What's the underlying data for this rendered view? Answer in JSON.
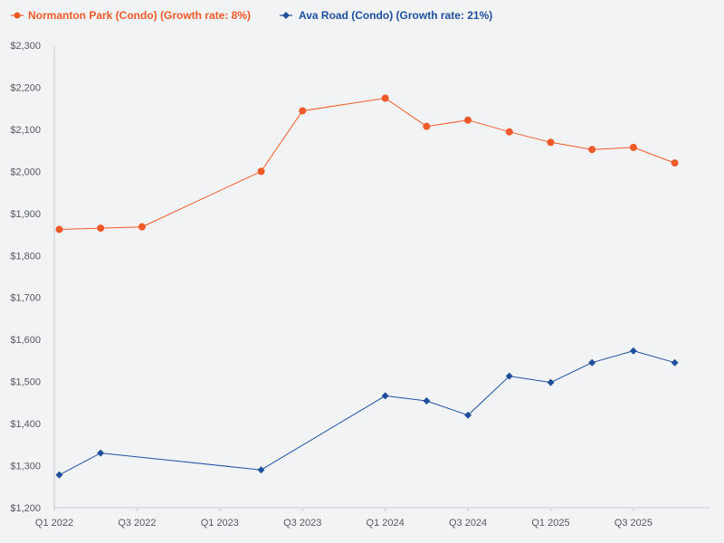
{
  "chart_data": {
    "type": "line",
    "title": "",
    "xlabel": "",
    "ylabel": "",
    "ylim": [
      1200,
      2300
    ],
    "y_ticks": [
      1200,
      1300,
      1400,
      1500,
      1600,
      1700,
      1800,
      1900,
      2000,
      2100,
      2200,
      2300
    ],
    "y_tick_labels": [
      "$1,200",
      "$1,300",
      "$1,400",
      "$1,500",
      "$1,600",
      "$1,700",
      "$1,800",
      "$1,900",
      "$2,000",
      "$2,100",
      "$2,200",
      "$2,300"
    ],
    "x_range": [
      2022.0,
      2025.96
    ],
    "x_ticks": [
      2022.0,
      2022.5,
      2023.0,
      2023.5,
      2024.0,
      2024.5,
      2025.0,
      2025.5
    ],
    "x_tick_labels": [
      "Q1 2022",
      "Q3 2022",
      "Q1 2023",
      "Q3 2023",
      "Q1 2024",
      "Q3 2024",
      "Q1 2025",
      "Q3 2025"
    ],
    "legend_position": "top-left",
    "series": [
      {
        "name": "Normanton Park (Condo) (Growth rate: 8%)",
        "color": "#f05a28",
        "marker": "circle",
        "x": [
          2022.03,
          2022.28,
          2022.53,
          2023.25,
          2023.5,
          2024.0,
          2024.25,
          2024.5,
          2024.75,
          2025.0,
          2025.25,
          2025.5,
          2025.75
        ],
        "y": [
          1862,
          1865,
          1868,
          2000,
          2144,
          2174,
          2107,
          2122,
          2094,
          2069,
          2052,
          2057,
          2020
        ]
      },
      {
        "name": "Ava Road (Condo) (Growth rate: 21%)",
        "color": "#1e4f9c",
        "marker": "diamond",
        "x": [
          2022.03,
          2022.28,
          2023.25,
          2024.0,
          2024.25,
          2024.5,
          2024.75,
          2025.0,
          2025.25,
          2025.5,
          2025.75
        ],
        "y": [
          1278,
          1330,
          1290,
          1466,
          1454,
          1420,
          1513,
          1498,
          1545,
          1573,
          1545
        ]
      }
    ]
  }
}
